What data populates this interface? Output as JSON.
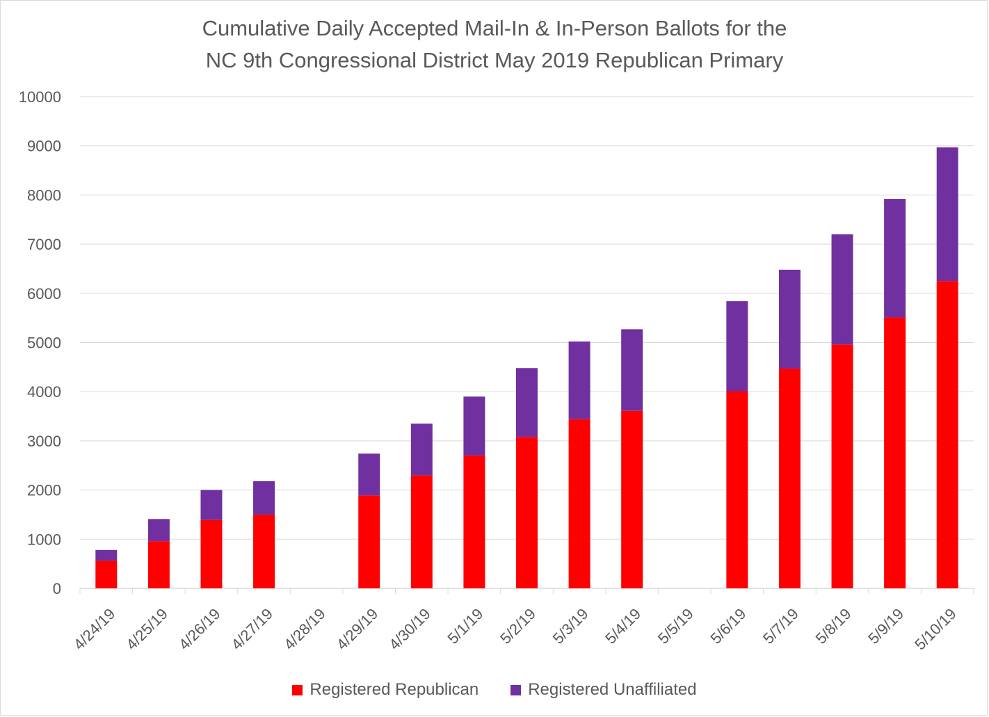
{
  "chart_data": {
    "type": "bar",
    "stacked": true,
    "title": [
      "Cumulative Daily Accepted Mail-In & In-Person Ballots for the",
      "NC 9th Congressional District May 2019 Republican Primary"
    ],
    "xlabel": "",
    "ylabel": "",
    "ylim": [
      0,
      10000
    ],
    "yticks": [
      0,
      1000,
      2000,
      3000,
      4000,
      5000,
      6000,
      7000,
      8000,
      9000,
      10000
    ],
    "grid": true,
    "legend_position": "bottom",
    "categories": [
      "4/24/19",
      "4/25/19",
      "4/26/19",
      "4/27/19",
      "4/28/19",
      "4/29/19",
      "4/30/19",
      "5/1/19",
      "5/2/19",
      "5/3/19",
      "5/4/19",
      "5/5/19",
      "5/6/19",
      "5/7/19",
      "5/8/19",
      "5/9/19",
      "5/10/19"
    ],
    "series": [
      {
        "name": "Registered Republican",
        "color": "#ff0000",
        "values": [
          560,
          960,
          1390,
          1500,
          0,
          1890,
          2300,
          2700,
          3080,
          3440,
          3610,
          0,
          4010,
          4470,
          4960,
          5510,
          6250
        ]
      },
      {
        "name": "Registered Unaffiliated",
        "color": "#7030a0",
        "values": [
          220,
          450,
          610,
          680,
          0,
          850,
          1050,
          1200,
          1400,
          1580,
          1660,
          0,
          1830,
          2010,
          2240,
          2410,
          2720
        ]
      }
    ]
  }
}
